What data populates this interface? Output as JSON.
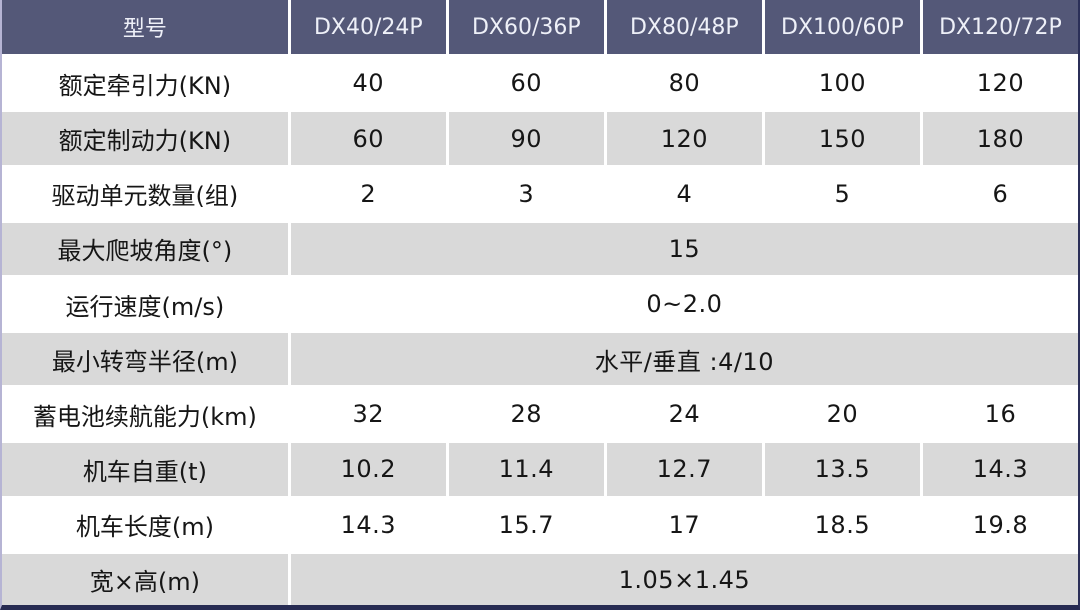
{
  "table": {
    "header": {
      "model_label": "型号",
      "models": [
        "DX40/24P",
        "DX60/36P",
        "DX80/48P",
        "DX100/60P",
        "DX120/72P"
      ]
    },
    "rows": [
      {
        "label": "额定牵引力(KN)",
        "values": [
          "40",
          "60",
          "80",
          "100",
          "120"
        ]
      },
      {
        "label": "额定制动力(KN)",
        "values": [
          "60",
          "90",
          "120",
          "150",
          "180"
        ]
      },
      {
        "label": "驱动单元数量(组)",
        "values": [
          "2",
          "3",
          "4",
          "5",
          "6"
        ]
      },
      {
        "label": "最大爬坡角度(°)",
        "merged": "15"
      },
      {
        "label": "运行速度(m/s)",
        "merged": "0~2.0"
      },
      {
        "label": "最小转弯半径(m)",
        "merged": "水平/垂直 :4/10"
      },
      {
        "label": "蓄电池续航能力(km)",
        "values": [
          "32",
          "28",
          "24",
          "20",
          "16"
        ]
      },
      {
        "label": "机车自重(t)",
        "values": [
          "10.2",
          "11.4",
          "12.7",
          "13.5",
          "14.3"
        ]
      },
      {
        "label": "机车长度(m)",
        "values": [
          "14.3",
          "15.7",
          "17",
          "18.5",
          "19.8"
        ]
      },
      {
        "label": "宽×高(m)",
        "merged": "1.05×1.45"
      }
    ],
    "colors": {
      "header_bg": "#545878",
      "header_text": "#eef0f8",
      "row_gray_bg": "#d9d9d9",
      "row_white_bg": "#ffffff",
      "border_dark_navy": "#2b2f58",
      "border_light_lavender": "#b6b4d4",
      "body_text": "#161616"
    }
  }
}
